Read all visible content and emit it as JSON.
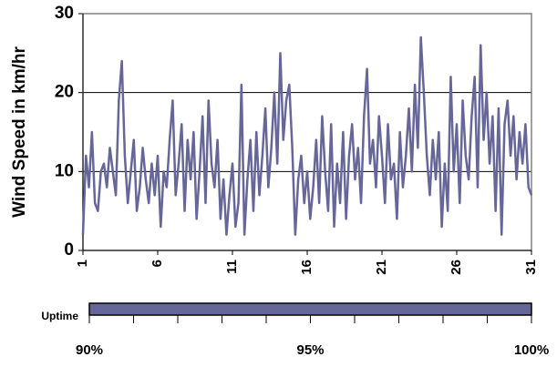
{
  "chart_data": [
    {
      "type": "line",
      "ylabel": "Wind Speed in km/hr",
      "x": [
        1,
        1.2,
        1.4,
        1.6,
        1.8,
        2,
        2.2,
        2.4,
        2.6,
        2.8,
        3,
        3.2,
        3.4,
        3.6,
        3.8,
        4,
        4.2,
        4.4,
        4.6,
        4.8,
        5,
        5.2,
        5.4,
        5.6,
        5.8,
        6,
        6.2,
        6.4,
        6.6,
        6.8,
        7,
        7.2,
        7.4,
        7.6,
        7.8,
        8,
        8.2,
        8.4,
        8.6,
        8.8,
        9,
        9.2,
        9.4,
        9.6,
        9.8,
        10,
        10.2,
        10.4,
        10.6,
        10.8,
        11,
        11.2,
        11.4,
        11.6,
        11.8,
        12,
        12.2,
        12.4,
        12.6,
        12.8,
        13,
        13.2,
        13.4,
        13.6,
        13.8,
        14,
        14.2,
        14.4,
        14.6,
        14.8,
        15,
        15.2,
        15.4,
        15.6,
        15.8,
        16,
        16.2,
        16.4,
        16.6,
        16.8,
        17,
        17.2,
        17.4,
        17.6,
        17.8,
        18,
        18.2,
        18.4,
        18.6,
        18.8,
        19,
        19.2,
        19.4,
        19.6,
        19.8,
        20,
        20.2,
        20.4,
        20.6,
        20.8,
        21,
        21.2,
        21.4,
        21.6,
        21.8,
        22,
        22.2,
        22.4,
        22.6,
        22.8,
        23,
        23.2,
        23.4,
        23.6,
        23.8,
        24,
        24.2,
        24.4,
        24.6,
        24.8,
        25,
        25.2,
        25.4,
        25.6,
        25.8,
        26,
        26.2,
        26.4,
        26.6,
        26.8,
        27,
        27.2,
        27.4,
        27.6,
        27.8,
        28,
        28.2,
        28.4,
        28.6,
        28.8,
        29,
        29.2,
        29.4,
        29.6,
        29.8,
        30,
        30.2,
        30.4,
        30.6,
        30.8,
        31
      ],
      "series": [
        {
          "color": "#666699",
          "values": [
            2,
            12,
            8,
            15,
            6,
            5,
            10,
            11,
            8,
            13,
            10,
            7,
            19,
            24,
            12,
            6,
            10,
            14,
            5,
            8,
            13,
            9,
            6,
            11,
            7,
            12,
            3,
            10,
            8,
            14,
            19,
            7,
            11,
            16,
            5,
            14,
            9,
            15,
            4,
            10,
            17,
            6,
            19,
            11,
            8,
            14,
            4,
            9,
            2,
            7,
            11,
            3,
            6,
            21,
            2,
            9,
            14,
            5,
            15,
            7,
            12,
            18,
            8,
            13,
            20,
            11,
            25,
            14,
            19,
            21,
            13,
            2,
            9,
            12,
            6,
            10,
            4,
            8,
            14,
            6,
            17,
            10,
            5,
            16,
            3,
            11,
            6,
            15,
            4,
            12,
            16,
            9,
            13,
            6,
            17,
            23,
            11,
            14,
            8,
            17,
            12,
            6,
            16,
            9,
            11,
            4,
            15,
            8,
            12,
            18,
            10,
            21,
            13,
            27,
            20,
            12,
            7,
            14,
            9,
            15,
            3,
            11,
            5,
            22,
            10,
            16,
            6,
            19,
            12,
            9,
            17,
            22,
            8,
            26,
            14,
            20,
            11,
            17,
            5,
            18,
            2,
            16,
            19,
            12,
            17,
            9,
            15,
            11,
            16,
            8,
            7
          ]
        }
      ],
      "xlim": [
        1,
        31
      ],
      "xticks": [
        1,
        6,
        11,
        16,
        21,
        26,
        31
      ],
      "ylim": [
        0,
        30
      ],
      "yticks": [
        0,
        10,
        20,
        30
      ],
      "grid": true
    },
    {
      "type": "hbar",
      "categories": [
        "Uptime"
      ],
      "values": [
        100
      ],
      "color": "#666699",
      "xlim": [
        90,
        100
      ],
      "xticks": [
        {
          "value": 90,
          "label": "90%"
        },
        {
          "value": 95,
          "label": "95%"
        },
        {
          "value": 100,
          "label": "100%"
        }
      ],
      "minor_ticks": [
        90,
        91,
        92,
        93,
        94,
        95,
        96,
        97,
        98,
        99,
        100
      ]
    }
  ]
}
